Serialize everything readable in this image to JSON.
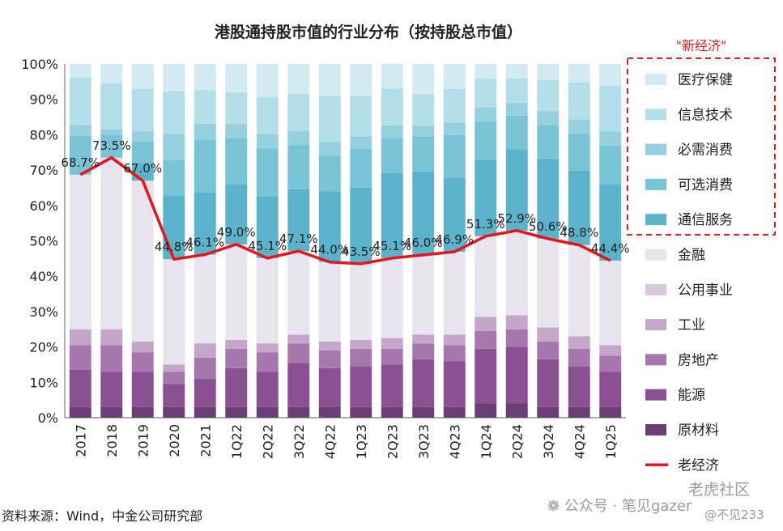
{
  "chart_data": {
    "type": "bar",
    "stacked": true,
    "title": "港股通持股市值的行业分布（按持股总市值）",
    "categories": [
      "2017",
      "2018",
      "2019",
      "2020",
      "2021",
      "1Q22",
      "2Q22",
      "3Q22",
      "4Q22",
      "1Q23",
      "2Q23",
      "3Q23",
      "4Q23",
      "1Q24",
      "2Q24",
      "3Q24",
      "4Q24",
      "1Q25"
    ],
    "ylim": [
      0,
      100
    ],
    "yticks": [
      "0%",
      "10%",
      "20%",
      "30%",
      "40%",
      "50%",
      "60%",
      "70%",
      "80%",
      "90%",
      "100%"
    ],
    "series": [
      {
        "name": "原材料",
        "color": "#6b3f75",
        "values": [
          3,
          3,
          3,
          3,
          3,
          3,
          3,
          3,
          3,
          3,
          3,
          3,
          3,
          4,
          4,
          3,
          3,
          3
        ]
      },
      {
        "name": "能源",
        "color": "#8b4f93",
        "values": [
          10.5,
          10,
          10,
          6.5,
          8,
          11,
          10,
          12.5,
          11,
          11.5,
          12,
          13.5,
          13,
          15.5,
          16,
          13.5,
          11.5,
          10
        ]
      },
      {
        "name": "房地产",
        "color": "#a577ad",
        "values": [
          7,
          7.5,
          5.5,
          3.5,
          6,
          5.5,
          5.5,
          5.5,
          5,
          5,
          4.5,
          4.5,
          4.5,
          5,
          5,
          5,
          5,
          4.5
        ]
      },
      {
        "name": "工业",
        "color": "#c4a6c9",
        "values": [
          4.5,
          4.5,
          3,
          2,
          4,
          2.5,
          2.5,
          2.5,
          2.5,
          2.5,
          3,
          2.5,
          3,
          4,
          4,
          4,
          3.5,
          3
        ]
      },
      {
        "name": "公用事业",
        "color": "#d9c9dd",
        "values": [
          0,
          0,
          0,
          0,
          0,
          0,
          0,
          0,
          0,
          0,
          0,
          0,
          0,
          0,
          0,
          0,
          0,
          0
        ]
      },
      {
        "name": "金融",
        "color": "#e8e3ec",
        "values": [
          43.7,
          48.5,
          45.5,
          29.8,
          25.1,
          27,
          24.1,
          23.6,
          22.5,
          21.5,
          22.6,
          22.5,
          23.4,
          22.8,
          23.9,
          25.1,
          25.8,
          23.9
        ]
      },
      {
        "name": "通信服务",
        "color": "#5bb3cb",
        "values": [
          0,
          0,
          5,
          18,
          17.5,
          17,
          17.5,
          17.5,
          20,
          21.5,
          24,
          23.5,
          21,
          21.5,
          23,
          22.5,
          21,
          21.5
        ]
      },
      {
        "name": "可选消费",
        "color": "#78c3d6",
        "values": [
          11,
          6.5,
          6,
          10,
          15,
          13,
          13.5,
          12.5,
          10,
          11,
          10,
          10,
          12,
          11,
          9.5,
          9.5,
          10.5,
          11
        ]
      },
      {
        "name": "必需消费",
        "color": "#96d0df",
        "values": [
          3,
          1.5,
          3,
          7.5,
          4.5,
          4,
          4,
          4,
          4,
          3.5,
          3.5,
          3,
          3.5,
          4,
          3.5,
          4,
          4,
          4
        ]
      },
      {
        "name": "信息技术",
        "color": "#b3dde9",
        "values": [
          13.5,
          13,
          12,
          12,
          9.5,
          9,
          10.5,
          10.5,
          13,
          11.5,
          10.5,
          9,
          9.5,
          8,
          7,
          9,
          10.5,
          13
        ]
      },
      {
        "name": "医疗保健",
        "color": "#d2ebf3",
        "values": [
          3.8,
          5.5,
          7,
          7.7,
          7.4,
          8,
          9.4,
          8.4,
          9,
          9,
          7,
          8.5,
          7.1,
          4.2,
          4.1,
          4.4,
          5.2,
          6.1
        ]
      }
    ],
    "line": {
      "name": "老经济",
      "color": "#e8141c",
      "values": [
        68.7,
        73.5,
        67.0,
        44.8,
        46.1,
        49.0,
        45.1,
        47.1,
        44.0,
        43.5,
        45.1,
        46.0,
        46.9,
        51.3,
        52.9,
        50.6,
        48.8,
        44.4
      ],
      "labels": [
        "68.7%",
        "73.5%",
        "67.0%",
        "44.8%",
        "46.1%",
        "49.0%",
        "45.1%",
        "47.1%",
        "44.0%",
        "43.5%",
        "45.1%",
        "46.0%",
        "46.9%",
        "51.3%",
        "52.9%",
        "50.6%",
        "48.8%",
        "44.4%"
      ]
    },
    "legend": {
      "position": "right",
      "new_economy_label": "\"新经济\"",
      "order": [
        "医疗保健",
        "信息技术",
        "必需消费",
        "可选消费",
        "通信服务",
        "金融",
        "公用事业",
        "工业",
        "房地产",
        "能源",
        "原材料",
        "老经济"
      ]
    }
  },
  "source": "资料来源：Wind，中金公司研究部",
  "watermarks": {
    "wechat": "公众号 · 笔见gazer",
    "tiger": "老虎社区",
    "user": "@不见233"
  }
}
